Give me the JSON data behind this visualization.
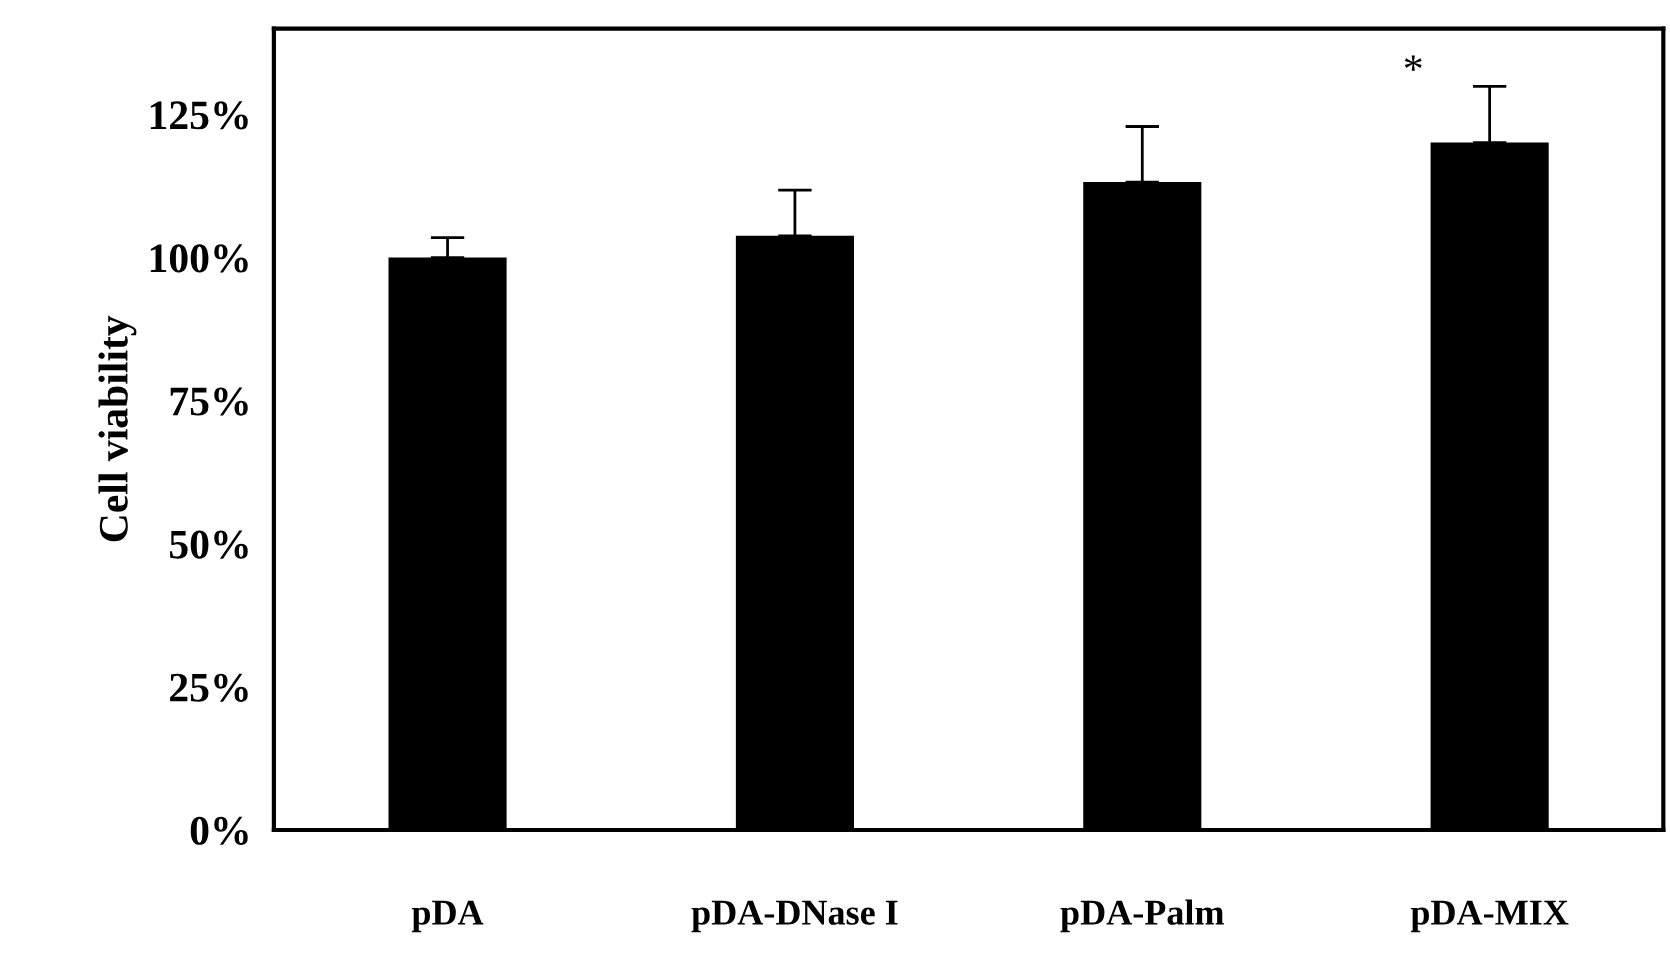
{
  "chart_data": {
    "type": "bar",
    "ylabel": "Cell viability",
    "categories": [
      "pDA",
      "pDA-DNase I",
      "pDA-Palm",
      "pDA-MIX"
    ],
    "values": [
      100,
      103.8,
      113.2,
      120.1
    ],
    "color": "#000000",
    "errors": [
      [
        100,
        103.5
      ],
      [
        103.8,
        111.8
      ],
      [
        113.2,
        122.9
      ],
      [
        120.1,
        129.9
      ]
    ],
    "ylim": [
      0,
      140
    ],
    "yticks": [
      {
        "value": 0,
        "label": "0%"
      },
      {
        "value": 25,
        "label": "25%"
      },
      {
        "value": 50,
        "label": "50%"
      },
      {
        "value": 75,
        "label": "75%"
      },
      {
        "value": 100,
        "label": "100%"
      },
      {
        "value": 125,
        "label": "125%"
      }
    ],
    "annotations": [
      "*"
    ],
    "grid": false,
    "legend": false
  }
}
